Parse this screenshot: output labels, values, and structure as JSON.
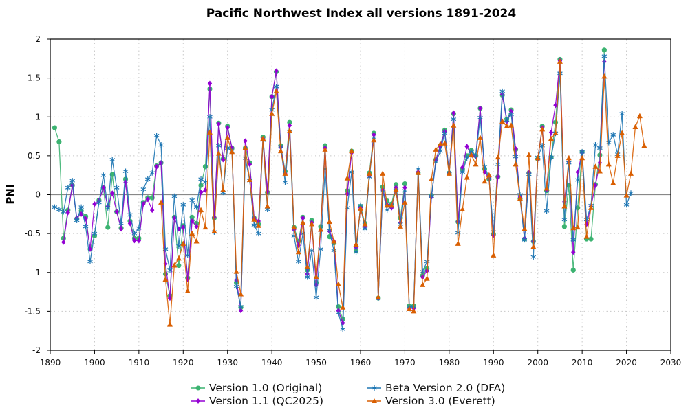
{
  "chart_data": {
    "type": "line",
    "title": "Pacific Northwest Index all versions 1891-2024",
    "xlabel": "",
    "ylabel": "PNI",
    "xlim": [
      1890,
      2030
    ],
    "ylim": [
      -2,
      2
    ],
    "xticks": [
      1890,
      1900,
      1910,
      1920,
      1930,
      1940,
      1950,
      1960,
      1970,
      1980,
      1990,
      2000,
      2010,
      2020,
      2030
    ],
    "yticks": [
      -2,
      -1.5,
      -1,
      -0.5,
      0,
      0.5,
      1,
      1.5,
      2
    ],
    "ytick_labels": [
      "-2",
      "-1.5",
      "-1",
      "-0.5",
      "0",
      "0.5",
      "1",
      "1.5",
      "2"
    ],
    "grid": true,
    "zero_line": true,
    "legend_position": "bottom",
    "series": [
      {
        "name": "Version 1.0 (Original)",
        "color": "#3cb371",
        "marker": "circle",
        "start_year": 1891,
        "values": [
          0.86,
          0.68,
          -0.56,
          -0.2,
          0.12,
          -0.31,
          -0.21,
          -0.28,
          -0.7,
          -0.53,
          -0.07,
          0.09,
          -0.42,
          0.26,
          -0.22,
          -0.43,
          0.2,
          -0.34,
          -0.56,
          -0.56,
          -0.1,
          -0.04,
          -0.04,
          0.37,
          0.41,
          -1.02,
          -1.3,
          -0.29,
          -0.91,
          -0.4,
          -1.07,
          -0.29,
          -0.37,
          0.12,
          0.36,
          1.36,
          -0.3,
          0.92,
          0.46,
          0.88,
          0.6,
          -1.13,
          -1.45,
          0.6,
          0.41,
          -0.3,
          -0.38,
          0.74,
          0.03,
          1.26,
          1.58,
          0.63,
          0.3,
          0.93,
          -0.42,
          -0.6,
          -0.29,
          -0.97,
          -0.33,
          -1.13,
          -0.41,
          0.63,
          -0.54,
          -0.62,
          -1.44,
          -1.6,
          0.05,
          0.56,
          -0.72,
          -0.15,
          -0.37,
          0.28,
          0.79,
          -1.33,
          0.1,
          -0.08,
          -0.12,
          0.13,
          -0.3,
          0.14,
          -1.43,
          -1.43,
          0.28,
          -1.04,
          -0.95,
          -0.01,
          0.45,
          0.63,
          0.83,
          0.28,
          1.04,
          -0.35,
          0.33,
          0.5,
          0.57,
          0.5,
          1.11,
          0.33,
          0.2,
          -0.51,
          0.23,
          1.28,
          0.97,
          1.09,
          0.58,
          -0.05,
          -0.57,
          0.28,
          -0.6,
          0.46,
          0.88,
          0.05,
          0.48,
          0.93,
          1.74,
          -0.41,
          0.12,
          -0.97,
          -0.17,
          0.55,
          -0.57,
          -0.57,
          0.13,
          0.51,
          1.86
        ]
      },
      {
        "name": "Version 1.1 (QC2025)",
        "color": "#9400d3",
        "marker": "diamond",
        "start_year": 1893,
        "values": [
          -0.61,
          -0.23,
          0.12,
          -0.3,
          -0.25,
          -0.31,
          -0.7,
          -0.12,
          -0.08,
          0.09,
          -0.15,
          0.02,
          -0.22,
          -0.44,
          0.16,
          -0.37,
          -0.59,
          -0.59,
          -0.12,
          -0.06,
          -0.2,
          0.36,
          0.41,
          -0.89,
          -1.33,
          -0.3,
          -0.44,
          -0.42,
          -1.09,
          -0.34,
          -0.41,
          0.03,
          0.06,
          1.43,
          -0.29,
          0.91,
          0.45,
          0.86,
          0.6,
          -1.1,
          -1.49,
          0.69,
          0.39,
          -0.3,
          -0.34,
          0.72,
          0.04,
          1.26,
          1.59,
          0.61,
          0.27,
          0.89,
          -0.45,
          -0.65,
          -0.3,
          -1.02,
          -0.36,
          -1.16,
          -0.46,
          0.6,
          -0.47,
          -0.6,
          -1.49,
          -1.65,
          0.01,
          0.54,
          -0.68,
          -0.17,
          -0.41,
          0.24,
          0.77,
          -1.33,
          0.06,
          -0.13,
          -0.17,
          0.09,
          -0.36,
          0.09,
          -1.46,
          -1.46,
          0.29,
          -1.06,
          -0.98,
          -0.03,
          0.44,
          0.62,
          0.81,
          0.28,
          1.05,
          -0.35,
          0.35,
          0.62,
          0.51,
          0.49,
          1.11,
          0.29,
          0.21,
          -0.52,
          0.23,
          1.29,
          0.94,
          1.07,
          0.59,
          -0.03,
          -0.56,
          0.28,
          -0.6,
          0.46,
          0.86,
          0.07,
          0.8,
          1.15,
          1.72,
          -0.09,
          0.42,
          -0.74,
          0.29,
          0.54,
          -0.38,
          -0.15,
          0.12,
          0.41,
          1.71
        ]
      },
      {
        "name": "Beta Version 2.0 (DFA)",
        "color": "#1f77b4",
        "marker": "asterisk",
        "start_year": 1891,
        "values": [
          -0.16,
          -0.19,
          -0.22,
          0.09,
          0.18,
          -0.33,
          -0.16,
          -0.41,
          -0.86,
          -0.5,
          -0.1,
          0.25,
          -0.17,
          0.45,
          0.09,
          -0.37,
          0.3,
          -0.26,
          -0.5,
          -0.43,
          0.07,
          0.2,
          0.28,
          0.76,
          0.64,
          -0.7,
          -0.97,
          -0.02,
          -0.66,
          -0.13,
          -0.78,
          -0.07,
          -0.16,
          0.2,
          0.16,
          1.0,
          -0.48,
          0.63,
          0.03,
          0.6,
          0.56,
          -1.18,
          -1.44,
          0.47,
          0.18,
          -0.39,
          -0.5,
          0.7,
          -0.19,
          1.09,
          1.39,
          0.62,
          0.16,
          0.81,
          -0.53,
          -0.86,
          -0.5,
          -1.06,
          -0.72,
          -1.32,
          -0.7,
          0.33,
          -0.46,
          -0.72,
          -1.52,
          -1.73,
          -0.17,
          0.29,
          -0.74,
          -0.14,
          -0.44,
          0.23,
          0.73,
          -1.33,
          0.05,
          -0.2,
          -0.14,
          0.06,
          -0.38,
          0.05,
          -1.44,
          -1.44,
          0.33,
          -0.99,
          -0.86,
          -0.02,
          0.42,
          0.56,
          0.79,
          0.27,
          0.97,
          -0.49,
          0.29,
          0.47,
          0.55,
          0.5,
          0.99,
          0.36,
          0.22,
          -0.48,
          0.39,
          1.33,
          0.96,
          1.03,
          0.49,
          0.0,
          -0.58,
          0.26,
          -0.8,
          0.48,
          0.63,
          -0.21,
          0.48,
          0.79,
          1.56,
          -0.32,
          0.41,
          -0.58,
          0.19,
          0.55,
          -0.32,
          -0.14,
          0.64,
          0.6,
          1.78,
          0.67,
          0.77,
          0.52,
          1.04,
          -0.13,
          0.02
        ]
      },
      {
        "name": "Version 3.0 (Everett)",
        "color": "#d95f02",
        "marker": "triangle",
        "start_year": 1915,
        "values": [
          -0.1,
          -1.09,
          -1.67,
          -0.91,
          -0.82,
          -0.63,
          -1.24,
          -0.5,
          -0.6,
          -0.2,
          -0.42,
          0.8,
          -0.47,
          0.53,
          0.06,
          0.73,
          0.55,
          -0.99,
          -1.28,
          0.6,
          0.19,
          -0.32,
          -0.4,
          0.72,
          -0.15,
          1.04,
          1.33,
          0.56,
          0.27,
          0.82,
          -0.42,
          -0.74,
          -0.36,
          -0.93,
          -0.38,
          -1.06,
          -0.45,
          0.58,
          -0.35,
          -0.6,
          -1.15,
          -1.45,
          0.21,
          0.56,
          -0.64,
          -0.18,
          -0.38,
          0.27,
          0.7,
          -1.32,
          0.27,
          -0.14,
          -0.14,
          0.06,
          -0.41,
          -0.1,
          -1.47,
          -1.5,
          0.28,
          -1.16,
          -1.08,
          0.2,
          0.58,
          0.65,
          0.66,
          0.27,
          0.89,
          -0.63,
          -0.19,
          0.22,
          0.51,
          0.39,
          0.73,
          0.17,
          0.25,
          -0.78,
          0.48,
          0.94,
          0.88,
          0.89,
          0.39,
          -0.05,
          -0.44,
          0.51,
          -0.67,
          0.47,
          0.84,
          0.08,
          0.72,
          0.79,
          1.71,
          -0.15,
          0.47,
          -0.43,
          -0.42,
          0.47,
          -0.54,
          -0.17,
          0.36,
          0.3,
          1.52,
          0.39,
          0.15,
          0.5,
          0.79,
          -0.01,
          0.27,
          0.87,
          1.01,
          0.63
        ]
      }
    ]
  }
}
